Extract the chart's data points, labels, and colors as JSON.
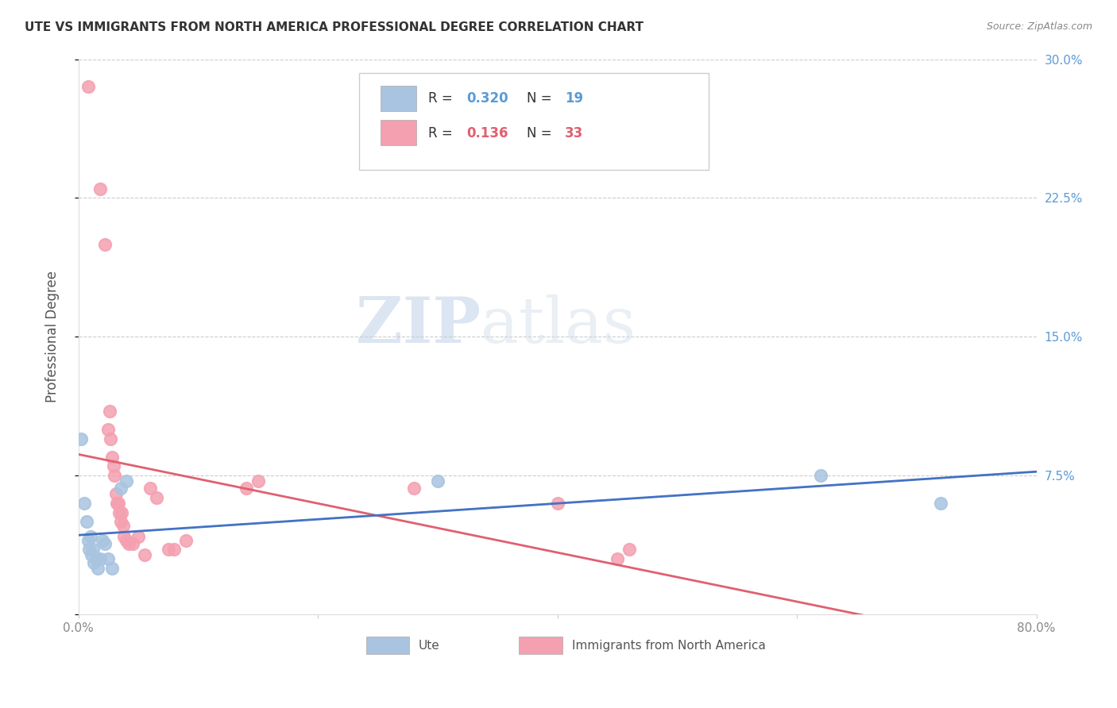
{
  "title": "UTE VS IMMIGRANTS FROM NORTH AMERICA PROFESSIONAL DEGREE CORRELATION CHART",
  "source": "Source: ZipAtlas.com",
  "ylabel": "Professional Degree",
  "xlim": [
    0.0,
    0.8
  ],
  "ylim": [
    0.0,
    0.3
  ],
  "xticks": [
    0.0,
    0.2,
    0.4,
    0.6,
    0.8
  ],
  "xticklabels": [
    "0.0%",
    "",
    "",
    "",
    "80.0%"
  ],
  "yticks": [
    0.0,
    0.075,
    0.15,
    0.225,
    0.3
  ],
  "yticklabels": [
    "",
    "7.5%",
    "15.0%",
    "22.5%",
    "30.0%"
  ],
  "ute_color": "#a8c4e0",
  "immigrants_color": "#f4a0b0",
  "ute_line_color": "#4472C4",
  "immigrants_line_color": "#E06070",
  "ute_dashed_color": "#b0c8e8",
  "watermark_zip": "ZIP",
  "watermark_atlas": "atlas",
  "ute_scatter": [
    [
      0.002,
      0.095
    ],
    [
      0.005,
      0.06
    ],
    [
      0.007,
      0.05
    ],
    [
      0.008,
      0.04
    ],
    [
      0.009,
      0.035
    ],
    [
      0.01,
      0.042
    ],
    [
      0.011,
      0.032
    ],
    [
      0.012,
      0.035
    ],
    [
      0.013,
      0.028
    ],
    [
      0.015,
      0.03
    ],
    [
      0.016,
      0.025
    ],
    [
      0.018,
      0.03
    ],
    [
      0.02,
      0.04
    ],
    [
      0.022,
      0.038
    ],
    [
      0.025,
      0.03
    ],
    [
      0.028,
      0.025
    ],
    [
      0.035,
      0.068
    ],
    [
      0.04,
      0.072
    ],
    [
      0.3,
      0.072
    ],
    [
      0.62,
      0.075
    ],
    [
      0.72,
      0.06
    ]
  ],
  "immigrants_scatter": [
    [
      0.008,
      0.285
    ],
    [
      0.018,
      0.23
    ],
    [
      0.022,
      0.2
    ],
    [
      0.025,
      0.1
    ],
    [
      0.026,
      0.11
    ],
    [
      0.027,
      0.095
    ],
    [
      0.028,
      0.085
    ],
    [
      0.029,
      0.08
    ],
    [
      0.03,
      0.075
    ],
    [
      0.031,
      0.065
    ],
    [
      0.032,
      0.06
    ],
    [
      0.033,
      0.06
    ],
    [
      0.034,
      0.055
    ],
    [
      0.035,
      0.05
    ],
    [
      0.036,
      0.055
    ],
    [
      0.037,
      0.048
    ],
    [
      0.038,
      0.042
    ],
    [
      0.04,
      0.04
    ],
    [
      0.042,
      0.038
    ],
    [
      0.045,
      0.038
    ],
    [
      0.05,
      0.042
    ],
    [
      0.055,
      0.032
    ],
    [
      0.06,
      0.068
    ],
    [
      0.065,
      0.063
    ],
    [
      0.075,
      0.035
    ],
    [
      0.08,
      0.035
    ],
    [
      0.09,
      0.04
    ],
    [
      0.14,
      0.068
    ],
    [
      0.15,
      0.072
    ],
    [
      0.28,
      0.068
    ],
    [
      0.4,
      0.06
    ],
    [
      0.45,
      0.03
    ],
    [
      0.46,
      0.035
    ]
  ]
}
